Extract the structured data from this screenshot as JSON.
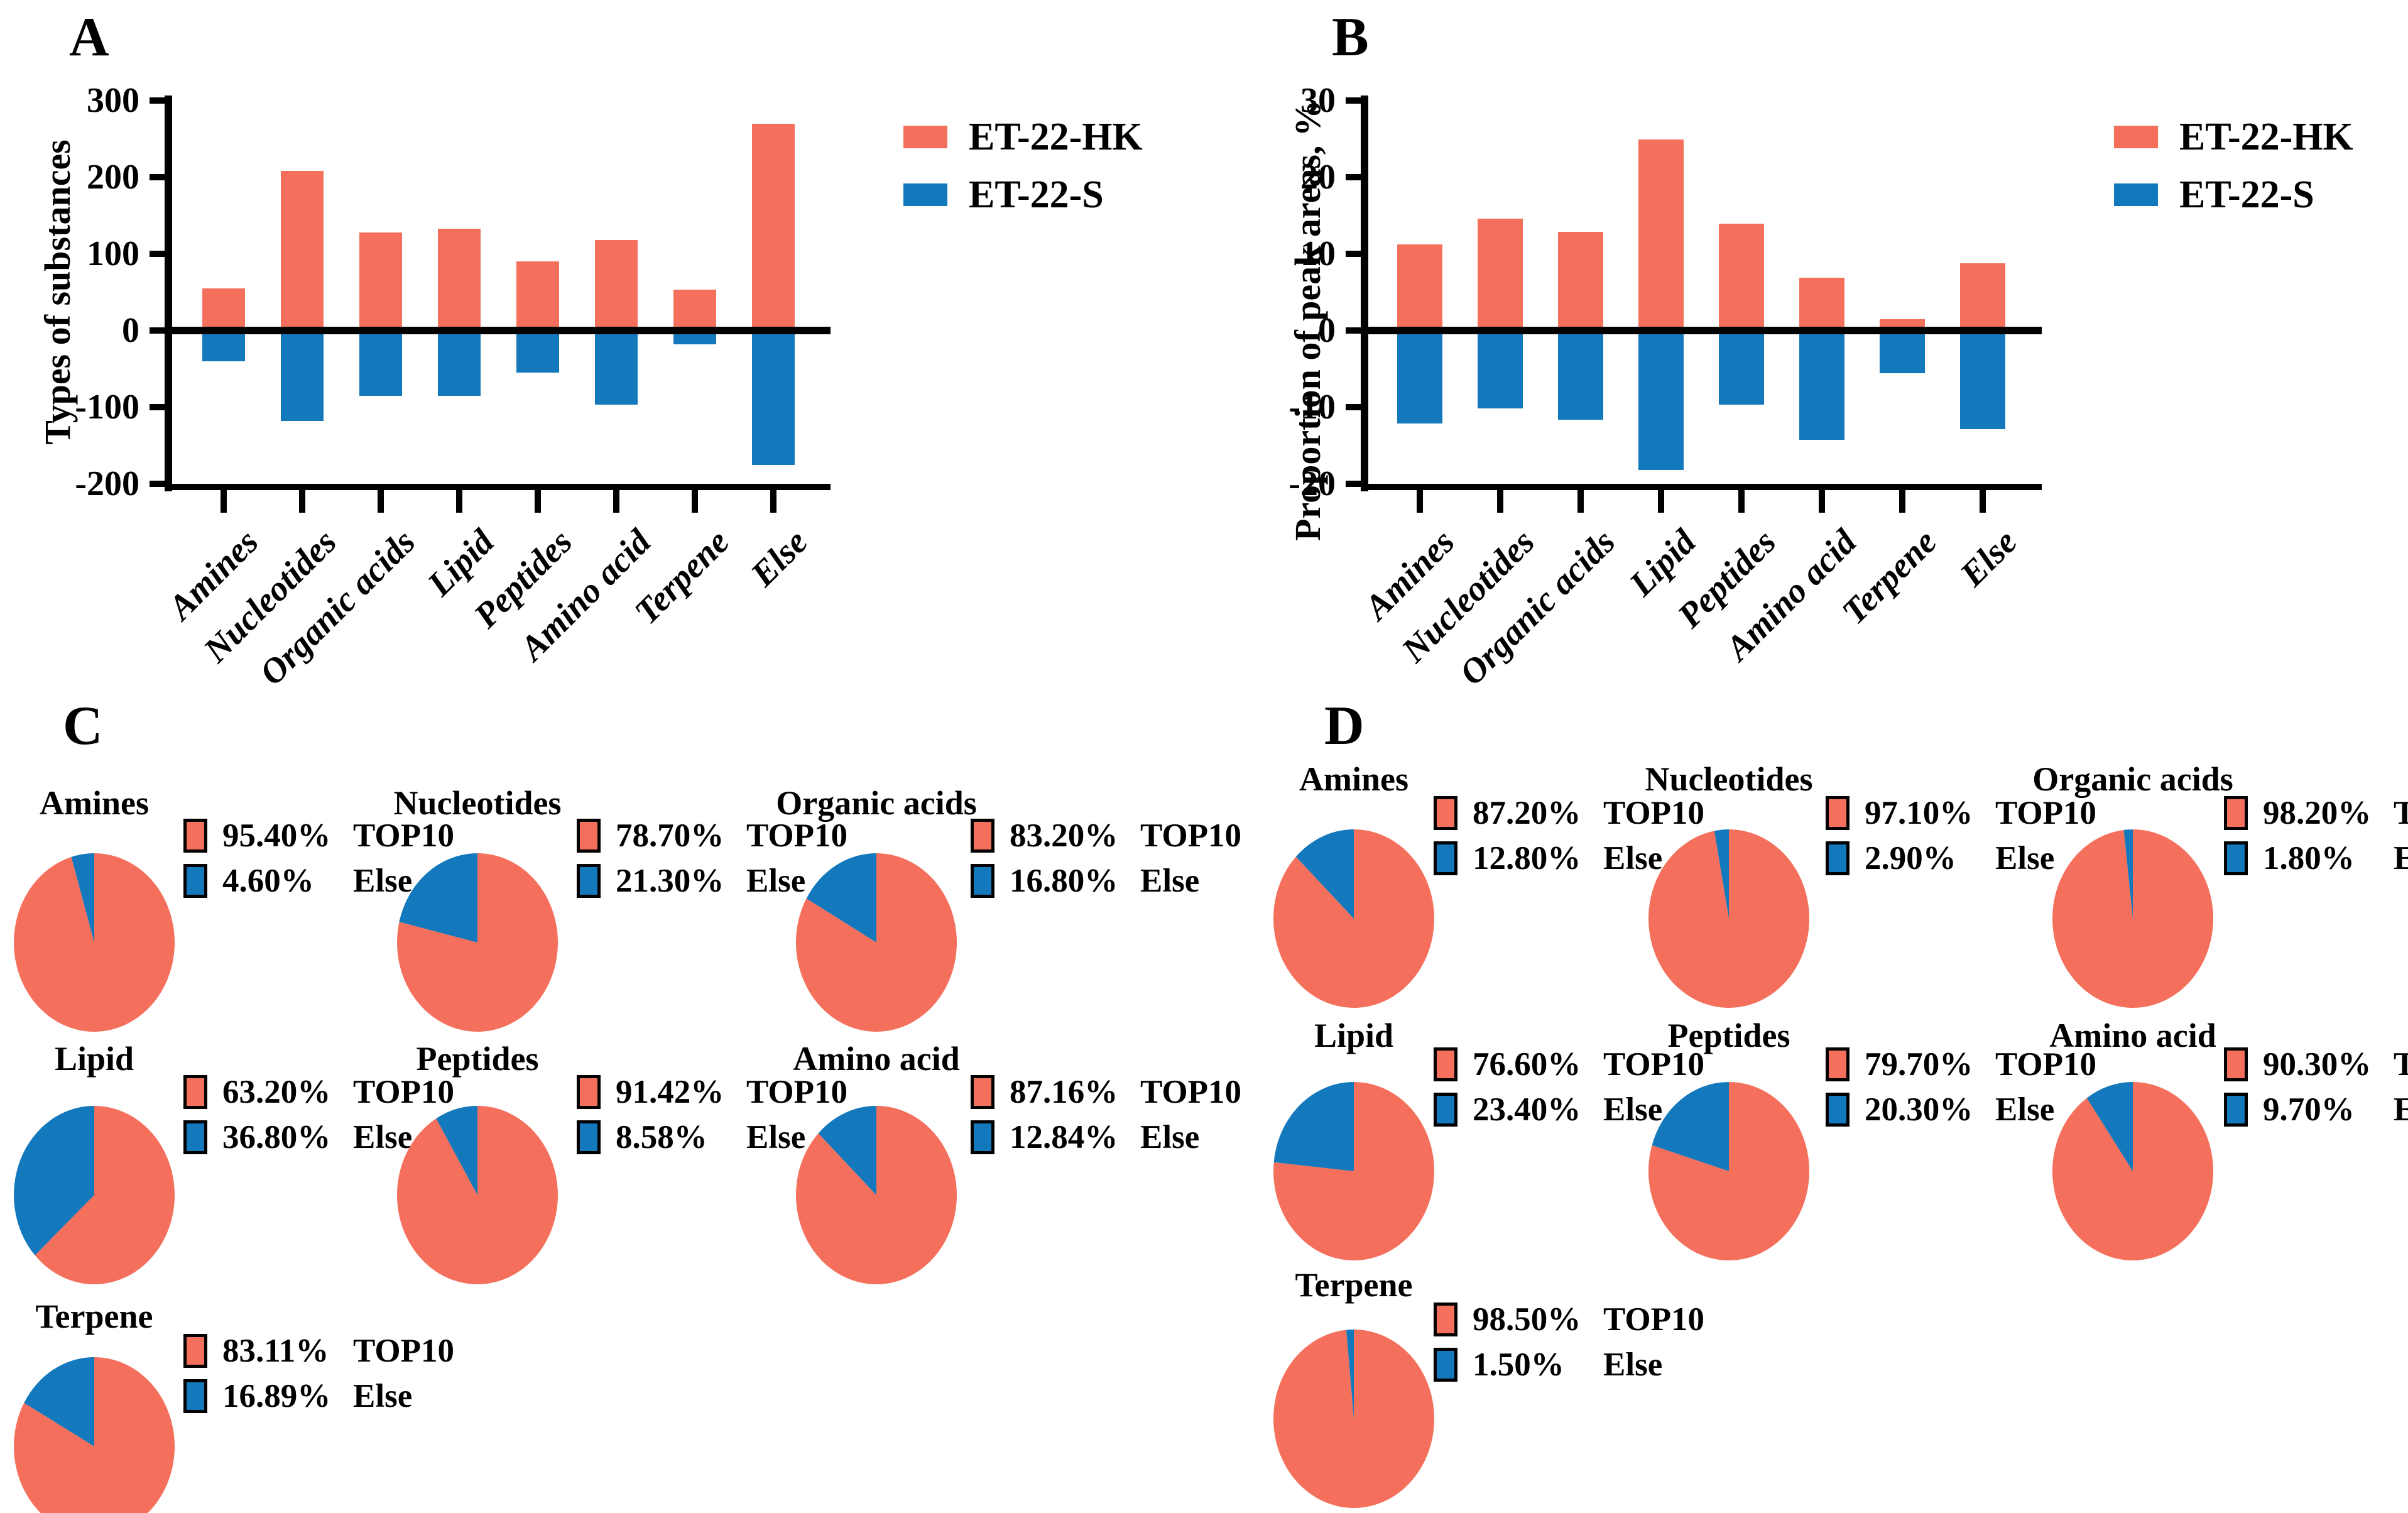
{
  "colors": {
    "et22_hk": "#F4705C",
    "et22_s": "#1478BC",
    "axis": "#000000"
  },
  "chart_data": [
    {
      "id": "A",
      "type": "bar",
      "panel_letter": "A",
      "ylabel": "Types of substances",
      "xlabel": "",
      "categories": [
        "Amines",
        "Nucleotides",
        "Organic acids",
        "Lipid",
        "Peptides",
        "Amino acid",
        "Terpene",
        "Else"
      ],
      "series": [
        {
          "name": "ET-22-HK",
          "color": "#F4705C",
          "values": [
            55,
            208,
            128,
            133,
            90,
            118,
            53,
            270
          ]
        },
        {
          "name": "ET-22-S",
          "color": "#1478BC",
          "values": [
            -40,
            -118,
            -85,
            -85,
            -55,
            -97,
            -18,
            -175
          ]
        }
      ],
      "ylim": [
        -200,
        300
      ],
      "yticks": [
        300,
        200,
        100,
        0,
        -100,
        -200
      ],
      "grid": false,
      "legend_position": "right-top"
    },
    {
      "id": "B",
      "type": "bar",
      "panel_letter": "B",
      "ylabel": "Proportion of peak areas,  %",
      "xlabel": "",
      "categories": [
        "Amines",
        "Nucleotides",
        "Organic acids",
        "Lipid",
        "Peptides",
        "Amino acid",
        "Terpene",
        "Else"
      ],
      "series": [
        {
          "name": "ET-22-HK",
          "color": "#F4705C",
          "values": [
            11.2,
            14.6,
            12.9,
            24.9,
            13.9,
            6.9,
            1.5,
            8.8
          ]
        },
        {
          "name": "ET-22-S",
          "color": "#1478BC",
          "values": [
            -12.1,
            -10.2,
            -11.6,
            -18.2,
            -9.7,
            -14.3,
            -5.6,
            -12.9
          ]
        }
      ],
      "ylim": [
        -20,
        30
      ],
      "yticks": [
        30,
        20,
        10,
        0,
        -10,
        -20
      ],
      "grid": false,
      "legend_position": "right-top"
    },
    {
      "id": "C",
      "type": "pie-group",
      "panel_letter": "C",
      "slice_labels": [
        "TOP10",
        "Else"
      ],
      "pies": [
        {
          "title": "Amines",
          "top10": 95.4,
          "else": 4.6
        },
        {
          "title": "Nucleotides",
          "top10": 78.7,
          "else": 21.3
        },
        {
          "title": "Organic acids",
          "top10": 83.2,
          "else": 16.8
        },
        {
          "title": "Lipid",
          "top10": 63.2,
          "else": 36.8
        },
        {
          "title": "Peptides",
          "top10": 91.42,
          "else": 8.58
        },
        {
          "title": "Amino acid",
          "top10": 87.16,
          "else": 12.84
        },
        {
          "title": "Terpene",
          "top10": 83.11,
          "else": 16.89
        }
      ]
    },
    {
      "id": "D",
      "type": "pie-group",
      "panel_letter": "D",
      "slice_labels": [
        "TOP10",
        "Else"
      ],
      "pies": [
        {
          "title": "Amines",
          "top10": 87.2,
          "else": 12.8
        },
        {
          "title": "Nucleotides",
          "top10": 97.1,
          "else": 2.9
        },
        {
          "title": "Organic acids",
          "top10": 98.2,
          "else": 1.8
        },
        {
          "title": "Lipid",
          "top10": 76.6,
          "else": 23.4
        },
        {
          "title": "Peptides",
          "top10": 79.7,
          "else": 20.3
        },
        {
          "title": "Amino acid",
          "top10": 90.3,
          "else": 9.7
        },
        {
          "title": "Terpene",
          "top10": 98.5,
          "else": 1.5
        }
      ]
    }
  ]
}
